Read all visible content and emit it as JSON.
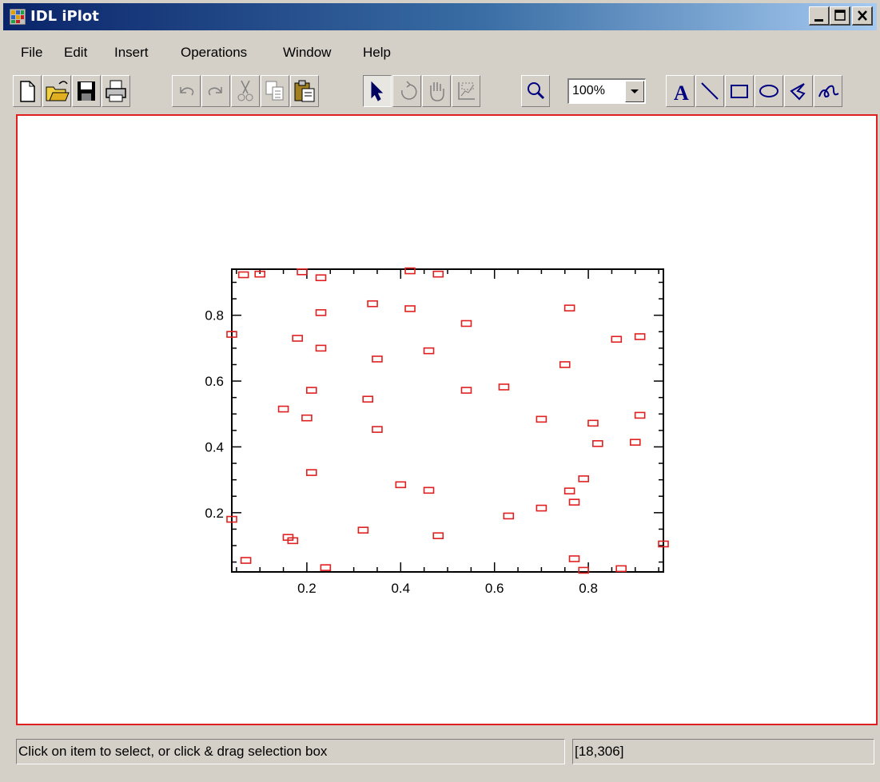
{
  "window": {
    "title": "IDL iPlot"
  },
  "menu": [
    "File",
    "Edit",
    "Insert",
    "Operations",
    "Window",
    "Help"
  ],
  "toolbar": {
    "buttons": [
      "new-file",
      "open-folder",
      "save",
      "print",
      "undo",
      "redo",
      "cut",
      "copy",
      "paste",
      "select-arrow",
      "rotate",
      "pan-hand",
      "data-range",
      "zoom-magnifier",
      "text-annotation",
      "line-annotation",
      "rectangle-annotation",
      "oval-annotation",
      "polygon-annotation",
      "freehand-annotation"
    ],
    "zoom_value": "100%",
    "text_tool_label": "A"
  },
  "status": {
    "message": "Click on item to select, or click & drag selection box",
    "coords": "[18,306]"
  },
  "colors": {
    "marker": "#e02020",
    "canvas_border": "#e02020",
    "title_gradient_start": "#0a246a"
  },
  "chart_data": {
    "type": "scatter",
    "title": "",
    "xlabel": "",
    "ylabel": "",
    "xlim": [
      0.04,
      0.96
    ],
    "ylim": [
      0.02,
      0.94
    ],
    "xticks": [
      0.2,
      0.4,
      0.6,
      0.8
    ],
    "yticks": [
      0.2,
      0.4,
      0.6,
      0.8
    ],
    "xtick_labels": [
      "0.2",
      "0.4",
      "0.6",
      "0.8"
    ],
    "ytick_labels": [
      "0.2",
      "0.4",
      "0.6",
      "0.8"
    ],
    "marker": "square",
    "series": [
      {
        "x": [
          0.065,
          0.1,
          0.19,
          0.23,
          0.42,
          0.48,
          0.34,
          0.42,
          0.76,
          0.23,
          0.04,
          0.18,
          0.23,
          0.54,
          0.35,
          0.46,
          0.86,
          0.91,
          0.75,
          0.21,
          0.33,
          0.54,
          0.62,
          0.15,
          0.2,
          0.35,
          0.7,
          0.81,
          0.82,
          0.91,
          0.9,
          0.21,
          0.4,
          0.46,
          0.79,
          0.76,
          0.77,
          0.7,
          0.04,
          0.63,
          0.16,
          0.17,
          0.32,
          0.48,
          0.07,
          0.24,
          0.77,
          0.79,
          0.87,
          0.96
        ],
        "y": [
          0.923,
          0.925,
          0.932,
          0.914,
          0.935,
          0.925,
          0.835,
          0.82,
          0.822,
          0.808,
          0.742,
          0.73,
          0.7,
          0.775,
          0.667,
          0.692,
          0.727,
          0.735,
          0.65,
          0.572,
          0.545,
          0.572,
          0.582,
          0.515,
          0.488,
          0.453,
          0.484,
          0.472,
          0.41,
          0.496,
          0.414,
          0.322,
          0.285,
          0.268,
          0.303,
          0.266,
          0.232,
          0.214,
          0.18,
          0.19,
          0.125,
          0.115,
          0.147,
          0.13,
          0.055,
          0.033,
          0.06,
          0.025,
          0.03,
          0.105
        ]
      }
    ]
  }
}
